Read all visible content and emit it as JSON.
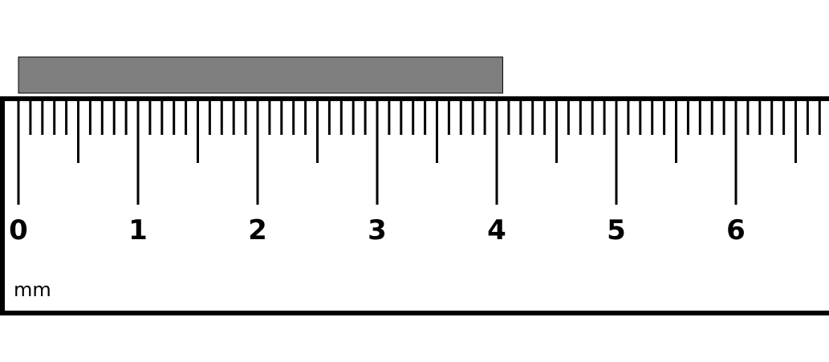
{
  "ruler": {
    "unit_label": "mm",
    "tick_labels": [
      "0",
      "1",
      "2",
      "3",
      "4",
      "5",
      "6"
    ],
    "minor_ticks_per_unit": 10,
    "visible_range": [
      0,
      6.8
    ]
  },
  "object": {
    "length": 4.05,
    "color": "#7f7f7f"
  }
}
